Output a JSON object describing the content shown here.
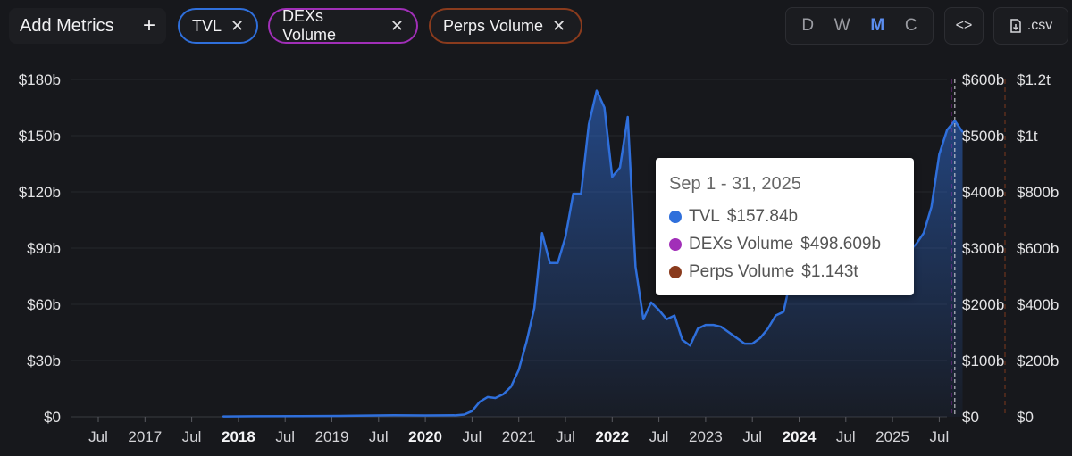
{
  "toolbar": {
    "add_metrics_label": "Add Metrics",
    "add_icon": "+",
    "close_icon": "✕",
    "metrics": [
      {
        "label": "TVL",
        "color": "#2f6fdb"
      },
      {
        "label": "DEXs Volume",
        "color": "#a12fb8"
      },
      {
        "label": "Perps Volume",
        "color": "#8a3b1d"
      }
    ],
    "intervals": [
      "D",
      "W",
      "M",
      "C"
    ],
    "active_interval": "M",
    "embed_label": "<>",
    "csv_label": ".csv"
  },
  "tooltip": {
    "date": "Sep 1 - 31, 2025",
    "rows": [
      {
        "name": "TVL",
        "value": "$157.84b",
        "color": "#2f6fdb"
      },
      {
        "name": "DEXs Volume",
        "value": "$498.609b",
        "color": "#a12fb8"
      },
      {
        "name": "Perps Volume",
        "value": "$1.143t",
        "color": "#8a3b1d"
      }
    ]
  },
  "chart_data": {
    "type": "area",
    "x_ticks": [
      "Jul",
      "2017",
      "Jul",
      "2018",
      "Jul",
      "2019",
      "Jul",
      "2020",
      "Jul",
      "2021",
      "Jul",
      "2022",
      "Jul",
      "2023",
      "Jul",
      "2024",
      "Jul",
      "2025",
      "Jul"
    ],
    "x_ticks_bold": [
      "2018",
      "2020",
      "2022",
      "2024"
    ],
    "y_ticks_left": [
      "$0",
      "$30b",
      "$60b",
      "$90b",
      "$120b",
      "$150b",
      "$180b"
    ],
    "y_ticks_right1": [
      "$0",
      "$100b",
      "$200b",
      "$300b",
      "$400b",
      "$500b",
      "$600b"
    ],
    "y_ticks_right2": [
      "$0",
      "$200b",
      "$400b",
      "$600b",
      "$800b",
      "$1t",
      "$1.2t"
    ],
    "ylim": [
      0,
      180
    ],
    "series": [
      {
        "name": "TVL",
        "color": "#2f6fdb",
        "x": [
          "2017-11",
          "2018-03",
          "2018-09",
          "2019-03",
          "2019-09",
          "2020-01",
          "2020-05",
          "2020-06",
          "2020-07",
          "2020-08",
          "2020-09",
          "2020-10",
          "2020-11",
          "2020-12",
          "2021-01",
          "2021-02",
          "2021-03",
          "2021-04",
          "2021-05",
          "2021-06",
          "2021-07",
          "2021-08",
          "2021-09",
          "2021-10",
          "2021-11",
          "2021-12",
          "2022-01",
          "2022-02",
          "2022-03",
          "2022-04",
          "2022-05",
          "2022-06",
          "2022-07",
          "2022-08",
          "2022-09",
          "2022-10",
          "2022-11",
          "2022-12",
          "2023-01",
          "2023-02",
          "2023-03",
          "2023-04",
          "2023-05",
          "2023-06",
          "2023-07",
          "2023-08",
          "2023-09",
          "2023-10",
          "2023-11",
          "2023-12",
          "2024-01",
          "2024-02",
          "2024-03",
          "2024-04",
          "2024-05",
          "2024-06",
          "2024-07",
          "2024-08",
          "2024-09",
          "2024-10",
          "2024-11",
          "2024-12",
          "2025-01",
          "2025-02",
          "2025-03",
          "2025-04",
          "2025-05",
          "2025-06",
          "2025-07",
          "2025-08",
          "2025-09",
          "2025-10"
        ],
        "values": [
          0.2,
          0.3,
          0.4,
          0.5,
          0.8,
          0.7,
          0.8,
          1.2,
          3,
          8,
          10.5,
          10,
          12,
          16,
          25,
          40,
          58,
          98,
          82,
          82,
          96,
          119,
          119,
          156,
          174,
          165,
          128,
          133,
          160,
          80,
          52,
          61,
          57,
          52,
          54,
          41,
          38,
          47,
          49,
          49,
          48,
          45,
          42,
          39,
          39,
          42,
          47,
          54,
          56,
          75,
          98,
          100,
          118,
          102,
          98,
          94,
          88,
          82,
          90,
          95,
          110,
          120,
          118,
          102,
          88,
          92,
          98,
          112,
          140,
          153,
          158,
          152
        ]
      }
    ]
  }
}
